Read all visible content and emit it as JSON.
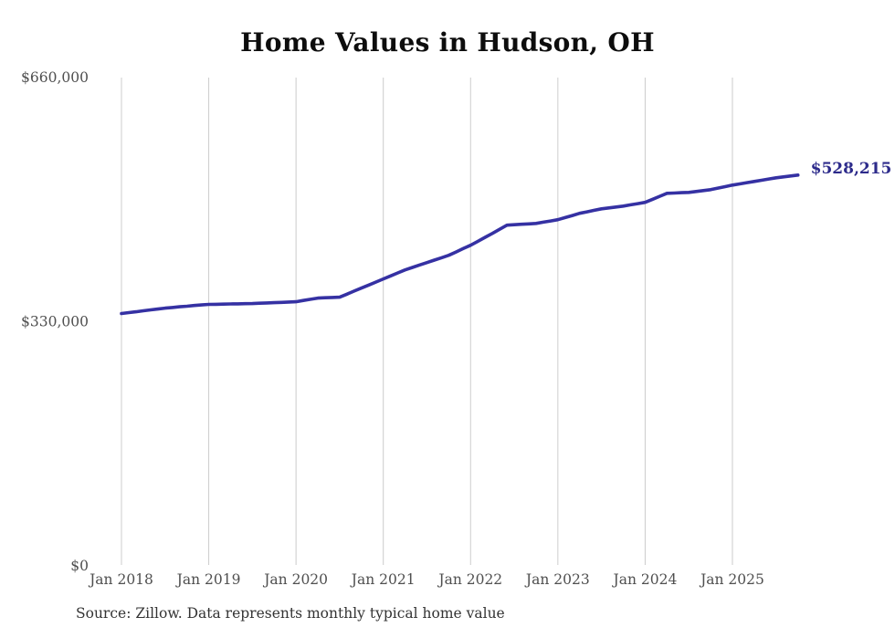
{
  "chart_data": {
    "type": "line",
    "title": "Home Values in Hudson, OH",
    "source": "Source: Zillow. Data represents monthly typical home value",
    "series_name": "Monthly typical home value",
    "xlabel": "",
    "ylabel": "",
    "ylim": [
      0,
      660000
    ],
    "grid": "vertical-only",
    "legend_position": "none",
    "end_label": "$528,215",
    "end_value": 528215,
    "line_color": "#3531a3",
    "end_label_color": "#2d2b8b",
    "grid_color": "#cccccc",
    "tick_label_color": "#4f4f4f",
    "title_color": "#0d0d0d",
    "source_color": "#333333",
    "background_color": "#ffffff",
    "y_ticks": [
      {
        "value": 0,
        "label": "$0"
      },
      {
        "value": 330000,
        "label": "$330,000"
      },
      {
        "value": 660000,
        "label": "$660,000"
      }
    ],
    "x_tick_labels": [
      "Jan 2018",
      "Jan 2019",
      "Jan 2020",
      "Jan 2021",
      "Jan 2022",
      "Jan 2023",
      "Jan 2024",
      "Jan 2025"
    ],
    "x_tick_month_indexes": [
      0,
      12,
      24,
      36,
      48,
      60,
      72,
      84
    ],
    "months": [
      "2018-01",
      "2018-02",
      "2018-03",
      "2018-04",
      "2018-05",
      "2018-06",
      "2018-07",
      "2018-08",
      "2018-09",
      "2018-10",
      "2018-11",
      "2018-12",
      "2019-01",
      "2019-02",
      "2019-03",
      "2019-04",
      "2019-05",
      "2019-06",
      "2019-07",
      "2019-08",
      "2019-09",
      "2019-10",
      "2019-11",
      "2019-12",
      "2020-01",
      "2020-02",
      "2020-03",
      "2020-04",
      "2020-05",
      "2020-06",
      "2020-07",
      "2020-08",
      "2020-09",
      "2020-10",
      "2020-11",
      "2020-12",
      "2021-01",
      "2021-02",
      "2021-03",
      "2021-04",
      "2021-05",
      "2021-06",
      "2021-07",
      "2021-08",
      "2021-09",
      "2021-10",
      "2021-11",
      "2021-12",
      "2022-01",
      "2022-02",
      "2022-03",
      "2022-04",
      "2022-05",
      "2022-06",
      "2022-07",
      "2022-08",
      "2022-09",
      "2022-10",
      "2022-11",
      "2022-12",
      "2023-01",
      "2023-02",
      "2023-03",
      "2023-04",
      "2023-05",
      "2023-06",
      "2023-07",
      "2023-08",
      "2023-09",
      "2023-10",
      "2023-11",
      "2023-12",
      "2024-01",
      "2024-02",
      "2024-03",
      "2024-04",
      "2024-05",
      "2024-06",
      "2024-07",
      "2024-08",
      "2024-09",
      "2024-10",
      "2024-11",
      "2024-12",
      "2025-01",
      "2025-02",
      "2025-03",
      "2025-04",
      "2025-05",
      "2025-06",
      "2025-07",
      "2025-08",
      "2025-09",
      "2025-10"
    ],
    "values": [
      341100,
      342300,
      343500,
      344800,
      346000,
      347200,
      348400,
      349300,
      350200,
      351000,
      351900,
      352700,
      353400,
      353600,
      353800,
      354000,
      354200,
      354400,
      354600,
      355000,
      355400,
      355800,
      356200,
      356600,
      357000,
      358700,
      360300,
      362000,
      362400,
      362800,
      363200,
      367300,
      371400,
      375500,
      379600,
      383700,
      387800,
      391900,
      396000,
      400100,
      403400,
      406700,
      410000,
      413300,
      416500,
      419800,
      424300,
      428900,
      433400,
      438700,
      444100,
      449400,
      455000,
      460500,
      461100,
      461700,
      462300,
      462900,
      464600,
      466200,
      467900,
      470800,
      473600,
      476500,
      478500,
      480600,
      482600,
      483800,
      485100,
      486300,
      488000,
      489600,
      491300,
      495400,
      499500,
      503600,
      504000,
      504400,
      504800,
      506000,
      507300,
      508500,
      510600,
      512600,
      514700,
      516300,
      518000,
      519600,
      521200,
      522900,
      524500,
      525800,
      527000,
      528215
    ]
  }
}
